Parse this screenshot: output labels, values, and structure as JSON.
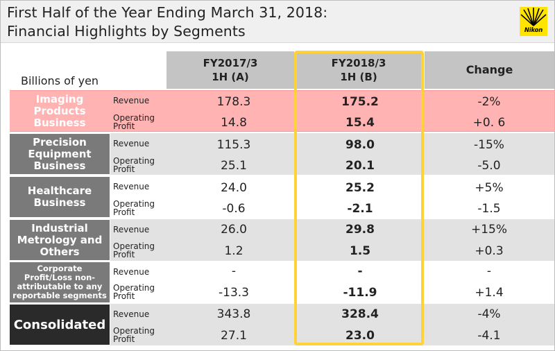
{
  "header": {
    "title_line1": "First Half of the Year Ending March 31, 2018:",
    "title_line2": "Financial Highlights by Segments",
    "logo_text": "Nikon"
  },
  "table": {
    "units_label": "Billions of yen",
    "columns": [
      {
        "line1": "FY2017/3",
        "line2": "1H (A)"
      },
      {
        "line1": "FY2018/3",
        "line2": "1H (B)"
      },
      {
        "line1": "Change",
        "line2": ""
      }
    ],
    "segments": [
      {
        "name_lines": [
          "Imaging",
          "Products",
          "Business"
        ],
        "rows": [
          {
            "metric": [
              "Revenue"
            ],
            "a": "178.3",
            "b": "175.2",
            "change": "-2%"
          },
          {
            "metric": [
              "Operating",
              "Profit"
            ],
            "a": "14.8",
            "b": "15.4",
            "change": "+0. 6"
          }
        ]
      },
      {
        "name_lines": [
          "Precision",
          "Equipment",
          "Business"
        ],
        "rows": [
          {
            "metric": [
              "Revenue"
            ],
            "a": "115.3",
            "b": "98.0",
            "change": "-15%"
          },
          {
            "metric": [
              "Operating",
              "Profit"
            ],
            "a": "25.1",
            "b": "20.1",
            "change": "-5.0"
          }
        ]
      },
      {
        "name_lines": [
          "Healthcare",
          "Business"
        ],
        "rows": [
          {
            "metric": [
              "Revenue"
            ],
            "a": "24.0",
            "b": "25.2",
            "change": "+5%"
          },
          {
            "metric": [
              "Operating",
              "Profit"
            ],
            "a": "-0.6",
            "b": "-2.1",
            "change": "-1.5"
          }
        ]
      },
      {
        "name_lines": [
          "Industrial",
          "Metrology and",
          "Others"
        ],
        "rows": [
          {
            "metric": [
              "Revenue"
            ],
            "a": "26.0",
            "b": "29.8",
            "change": "+15%"
          },
          {
            "metric": [
              "Operating",
              "Profit"
            ],
            "a": "1.2",
            "b": "1.5",
            "change": "+0.3"
          }
        ]
      },
      {
        "name_lines": [
          "Corporate",
          "Profit/Loss non-",
          "attributable to any",
          "reportable segments"
        ],
        "rows": [
          {
            "metric": [
              "Revenue"
            ],
            "a": "-",
            "b": "-",
            "change": "-"
          },
          {
            "metric": [
              "Operating",
              "Profit"
            ],
            "a": "-13.3",
            "b": "-11.9",
            "change": "+1.4"
          }
        ]
      },
      {
        "name_lines": [
          "Consolidated"
        ],
        "rows": [
          {
            "metric": [
              "Revenue"
            ],
            "a": "343.8",
            "b": "328.4",
            "change": "-4%"
          },
          {
            "metric": [
              "Operating",
              "Profit"
            ],
            "a": "27.1",
            "b": "23.0",
            "change": "-4.1"
          }
        ]
      }
    ]
  },
  "colors": {
    "highlight_row": "#ffb3b3",
    "segment_label_bg": "#7a7a7a",
    "consolidated_label_bg": "#2a2a2a",
    "column_highlight_border": "#ffd23a",
    "imaging_label_text": "#ffffff"
  }
}
